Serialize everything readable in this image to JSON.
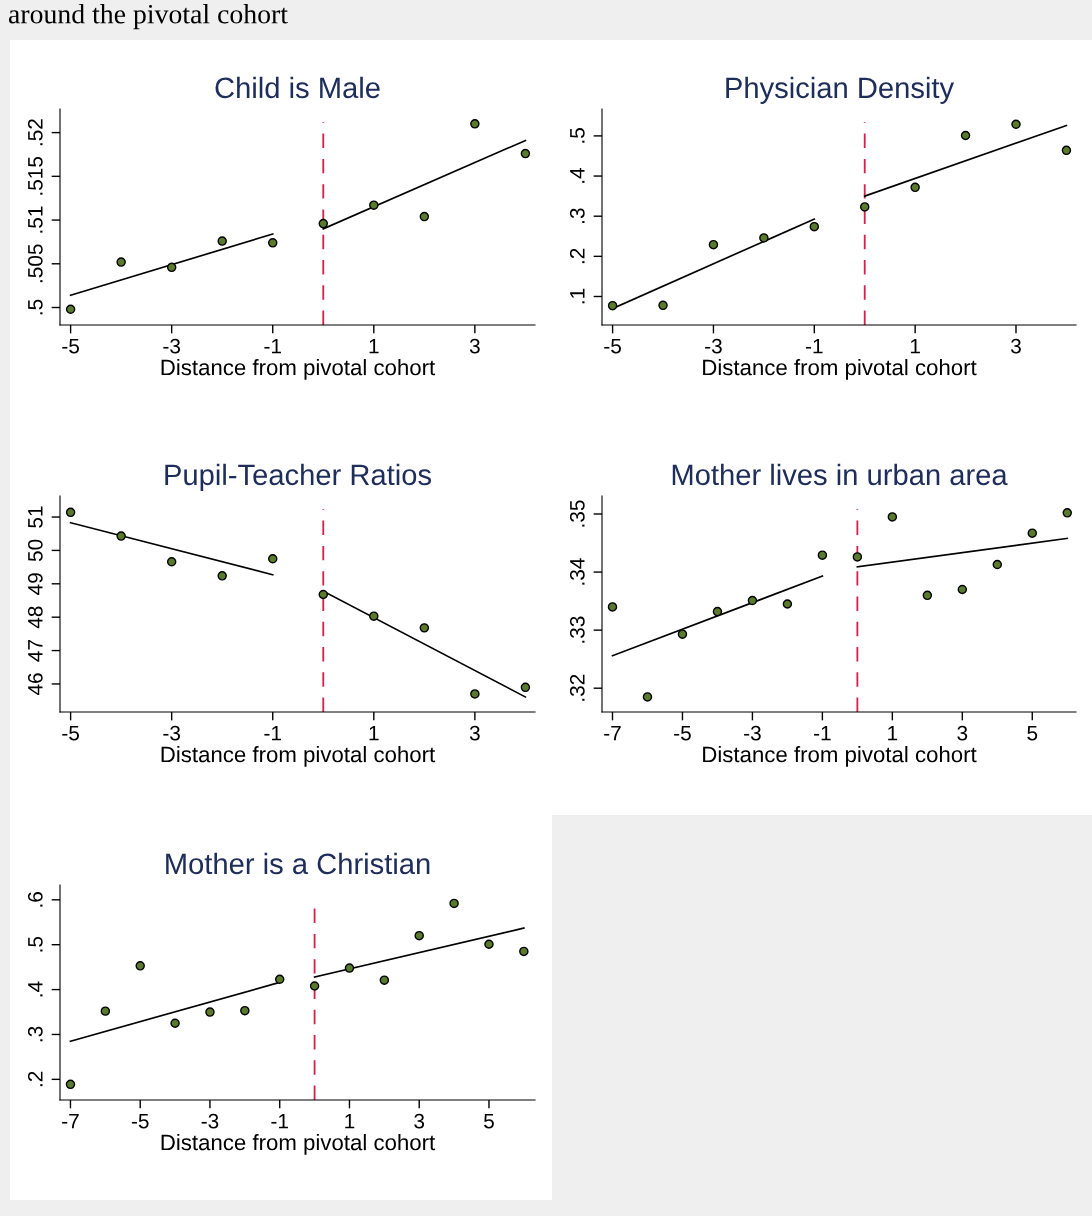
{
  "chart_data": [
    {
      "type": "scatter",
      "title": "Child is Male",
      "xlabel": "Distance from pivotal cohort",
      "annotations": [
        "around the pivotal cohort"
      ],
      "xlim": [
        -5.21,
        4.19
      ],
      "xticks": [
        -5,
        -3,
        -1,
        1,
        3
      ],
      "ylim": [
        0.498,
        0.5227
      ],
      "yticks": [
        {
          "value": 0.5,
          "label": ".5"
        },
        {
          "value": 0.505,
          "label": ".505"
        },
        {
          "value": 0.51,
          "label": ".51"
        },
        {
          "value": 0.515,
          "label": ".515"
        },
        {
          "value": 0.52,
          "label": ".52"
        }
      ],
      "ref_lines": [
        {
          "axis": "x",
          "value": 0,
          "color": "#d81e4a",
          "line_style": "dashed"
        }
      ],
      "series": [
        {
          "color": "#5a7a2c",
          "marker": "circle",
          "x": [
            -5,
            -4,
            -3,
            -2,
            -1,
            0,
            1,
            2,
            3,
            4
          ],
          "values": [
            0.4998,
            0.5052,
            0.5046,
            0.5076,
            0.5074,
            0.5096,
            0.5117,
            0.5104,
            0.521,
            0.5176
          ]
        },
        {
          "type": "line",
          "marker": "none",
          "color": "#000000",
          "x": [
            -5,
            -1
          ],
          "values": [
            0.5014,
            0.5084
          ]
        },
        {
          "type": "line",
          "marker": "none",
          "color": "#000000",
          "x": [
            0,
            4
          ],
          "values": [
            0.509,
            0.5191
          ]
        }
      ]
    },
    {
      "type": "scatter",
      "title": "Physician Density",
      "xlabel": "Distance from pivotal cohort",
      "xlim": [
        -5.21,
        4.19
      ],
      "xticks": [
        -5,
        -3,
        -1,
        1,
        3
      ],
      "ylim": [
        0.029,
        0.567
      ],
      "yticks": [
        {
          "value": 0.1,
          "label": ".1"
        },
        {
          "value": 0.2,
          "label": ".2"
        },
        {
          "value": 0.3,
          "label": ".3"
        },
        {
          "value": 0.4,
          "label": ".4"
        },
        {
          "value": 0.5,
          "label": ".5"
        }
      ],
      "ref_lines": [
        {
          "axis": "x",
          "value": 0,
          "color": "#d81e4a",
          "line_style": "dashed"
        }
      ],
      "series": [
        {
          "color": "#5a7a2c",
          "marker": "circle",
          "x": [
            -5,
            -4,
            -3,
            -2,
            -1,
            0,
            1,
            2,
            3,
            4
          ],
          "values": [
            0.077,
            0.078,
            0.229,
            0.246,
            0.274,
            0.323,
            0.372,
            0.501,
            0.529,
            0.464
          ]
        },
        {
          "type": "line",
          "marker": "none",
          "color": "#000000",
          "x": [
            -5,
            -1
          ],
          "values": [
            0.07,
            0.293
          ]
        },
        {
          "type": "line",
          "marker": "none",
          "color": "#000000",
          "x": [
            0,
            4
          ],
          "values": [
            0.35,
            0.526
          ]
        }
      ]
    },
    {
      "type": "scatter",
      "title": "Pupil-Teacher Ratios",
      "xlabel": "Distance from pivotal cohort",
      "xlim": [
        -5.21,
        4.19
      ],
      "xticks": [
        -5,
        -3,
        -1,
        1,
        3
      ],
      "ylim": [
        45.16,
        51.63
      ],
      "yticks": [
        46,
        47,
        48,
        49,
        50,
        51
      ],
      "ref_lines": [
        {
          "axis": "x",
          "value": 0,
          "color": "#d81e4a",
          "line_style": "dashed"
        }
      ],
      "series": [
        {
          "color": "#5a7a2c",
          "marker": "circle",
          "x": [
            -5,
            -4,
            -3,
            -2,
            -1,
            0,
            1,
            2,
            3,
            4
          ],
          "values": [
            51.14,
            50.43,
            49.66,
            49.24,
            49.75,
            48.68,
            48.03,
            47.68,
            45.7,
            45.9
          ]
        },
        {
          "type": "line",
          "marker": "none",
          "color": "#000000",
          "x": [
            -5,
            -1
          ],
          "values": [
            50.83,
            49.27
          ]
        },
        {
          "type": "line",
          "marker": "none",
          "color": "#000000",
          "x": [
            0,
            4
          ],
          "values": [
            48.78,
            45.61
          ]
        }
      ]
    },
    {
      "type": "scatter",
      "title": "Mother lives in urban area",
      "xlabel": "Distance from pivotal cohort",
      "xlim": [
        -7.3,
        6.25
      ],
      "xticks": [
        -7,
        -5,
        -3,
        -1,
        1,
        3,
        5
      ],
      "ylim": [
        0.3159,
        0.3531
      ],
      "yticks": [
        {
          "value": 0.32,
          "label": ".32"
        },
        {
          "value": 0.33,
          "label": ".33"
        },
        {
          "value": 0.34,
          "label": ".34"
        },
        {
          "value": 0.35,
          "label": ".35"
        }
      ],
      "ref_lines": [
        {
          "axis": "x",
          "value": 0,
          "color": "#d81e4a",
          "line_style": "dashed"
        }
      ],
      "series": [
        {
          "color": "#5a7a2c",
          "marker": "circle",
          "x": [
            -7,
            -6,
            -5,
            -4,
            -3,
            -2,
            -1,
            0,
            1,
            2,
            3,
            4,
            5,
            6
          ],
          "values": [
            0.334,
            0.3185,
            0.3293,
            0.3332,
            0.3351,
            0.3345,
            0.3429,
            0.3426,
            0.3495,
            0.336,
            0.337,
            0.3413,
            0.3467,
            0.3502
          ]
        },
        {
          "type": "line",
          "marker": "none",
          "color": "#000000",
          "x": [
            -7,
            -1
          ],
          "values": [
            0.3256,
            0.3393
          ]
        },
        {
          "type": "line",
          "marker": "none",
          "color": "#000000",
          "x": [
            0,
            6
          ],
          "values": [
            0.3409,
            0.3458
          ]
        }
      ]
    },
    {
      "type": "scatter",
      "title": "Mother is a Christian",
      "xlabel": "Distance from pivotal cohort",
      "xlim": [
        -7.3,
        6.32
      ],
      "xticks": [
        -7,
        -5,
        -3,
        -1,
        1,
        3,
        5
      ],
      "ylim": [
        0.154,
        0.633
      ],
      "yticks": [
        {
          "value": 0.2,
          "label": ".2"
        },
        {
          "value": 0.3,
          "label": ".3"
        },
        {
          "value": 0.4,
          "label": ".4"
        },
        {
          "value": 0.5,
          "label": ".5"
        },
        {
          "value": 0.6,
          "label": ".6"
        }
      ],
      "ref_lines": [
        {
          "axis": "x",
          "value": 0,
          "color": "#d81e4a",
          "line_style": "dashed"
        }
      ],
      "series": [
        {
          "color": "#5a7a2c",
          "marker": "circle",
          "x": [
            -7,
            -6,
            -5,
            -4,
            -3,
            -2,
            -1,
            0,
            1,
            2,
            3,
            4,
            5,
            6
          ],
          "values": [
            0.189,
            0.352,
            0.453,
            0.325,
            0.35,
            0.353,
            0.423,
            0.408,
            0.448,
            0.421,
            0.52,
            0.592,
            0.501,
            0.485
          ]
        },
        {
          "type": "line",
          "marker": "none",
          "color": "#000000",
          "x": [
            -7,
            -1
          ],
          "values": [
            0.285,
            0.416
          ]
        },
        {
          "type": "line",
          "marker": "none",
          "color": "#000000",
          "x": [
            0,
            6
          ],
          "values": [
            0.428,
            0.537
          ]
        }
      ]
    }
  ]
}
